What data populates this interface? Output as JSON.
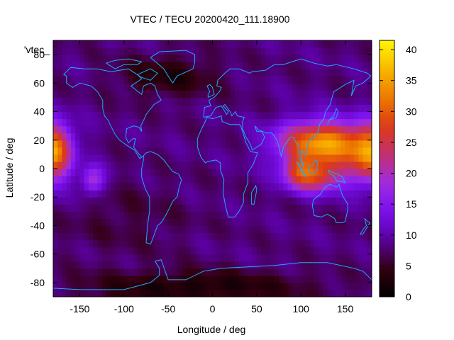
{
  "chart_data": {
    "type": "heatmap",
    "title": "VTEC / TECU 20200420_111.18900",
    "xlabel": "Longitude / deg",
    "ylabel": "Latitude / deg",
    "key_label": "'vtec_",
    "xlim": [
      -180,
      180
    ],
    "ylim": [
      -90,
      90
    ],
    "zlim": [
      0,
      41.5
    ],
    "x_ticks": [
      -150,
      -100,
      -50,
      0,
      50,
      100,
      150
    ],
    "y_ticks": [
      -80,
      -60,
      -40,
      -20,
      0,
      20,
      40,
      60,
      80
    ],
    "colorbar_ticks": [
      0,
      5,
      10,
      15,
      20,
      25,
      30,
      35,
      40
    ],
    "palette": [
      "#000000",
      "#33000f",
      "#5a00a0",
      "#7a10ee",
      "#a02ce0",
      "#c23070",
      "#dd3a14",
      "#ee7a00",
      "#f9b800",
      "#fff700"
    ],
    "coastline_color": "#1ea8ff",
    "background_vtec": 8,
    "features": [
      {
        "lon": -178,
        "lat": 12,
        "sx": 14,
        "sy": 14,
        "amp": 15
      },
      {
        "lon": -135,
        "lat": -8,
        "sx": 9,
        "sy": 7,
        "amp": 12
      },
      {
        "lon": 125,
        "lat": 18,
        "sx": 35,
        "sy": 11,
        "amp": 27
      },
      {
        "lon": 115,
        "lat": -5,
        "sx": 22,
        "sy": 8,
        "amp": 19
      },
      {
        "lon": 170,
        "lat": 5,
        "sx": 18,
        "sy": 14,
        "amp": 8
      },
      {
        "lon": 95,
        "lat": 0,
        "sx": 10,
        "sy": 8,
        "amp": 6
      },
      {
        "lon": -50,
        "lat": 65,
        "sx": 40,
        "sy": 10,
        "amp": -5
      },
      {
        "lon": -20,
        "lat": -83,
        "sx": 90,
        "sy": 8,
        "amp": -6
      },
      {
        "lon": -100,
        "lat": -35,
        "sx": 50,
        "sy": 18,
        "amp": -2
      }
    ],
    "coastlines": [
      [
        [
          -165,
          68
        ],
        [
          -160,
          71
        ],
        [
          -145,
          70
        ],
        [
          -130,
          70
        ],
        [
          -115,
          68
        ],
        [
          -95,
          70
        ],
        [
          -85,
          66
        ],
        [
          -80,
          63
        ],
        [
          -92,
          58
        ],
        [
          -88,
          56
        ],
        [
          -80,
          52
        ],
        [
          -78,
          58
        ],
        [
          -70,
          60
        ],
        [
          -65,
          58
        ],
        [
          -62,
          52
        ],
        [
          -58,
          48
        ],
        [
          -66,
          45
        ],
        [
          -70,
          42
        ],
        [
          -75,
          38
        ],
        [
          -77,
          35
        ],
        [
          -81,
          30
        ],
        [
          -80,
          26
        ],
        [
          -83,
          29
        ],
        [
          -89,
          30
        ],
        [
          -97,
          28
        ],
        [
          -98,
          22
        ],
        [
          -95,
          18
        ],
        [
          -90,
          21
        ],
        [
          -87,
          21
        ],
        [
          -89,
          15
        ],
        [
          -84,
          11
        ],
        [
          -80,
          8
        ],
        [
          -78,
          9
        ],
        [
          -82,
          7
        ],
        [
          -88,
          13
        ],
        [
          -96,
          16
        ],
        [
          -105,
          20
        ],
        [
          -110,
          24
        ],
        [
          -115,
          30
        ],
        [
          -118,
          34
        ],
        [
          -122,
          37
        ],
        [
          -124,
          42
        ],
        [
          -124,
          48
        ],
        [
          -130,
          54
        ],
        [
          -137,
          58
        ],
        [
          -150,
          60
        ],
        [
          -158,
          57
        ],
        [
          -165,
          60
        ],
        [
          -165,
          65
        ],
        [
          -168,
          66
        ],
        [
          -165,
          68
        ]
      ],
      [
        [
          -78,
          9
        ],
        [
          -75,
          11
        ],
        [
          -70,
          12
        ],
        [
          -62,
          10
        ],
        [
          -55,
          6
        ],
        [
          -50,
          2
        ],
        [
          -45,
          -2
        ],
        [
          -38,
          -4
        ],
        [
          -35,
          -8
        ],
        [
          -38,
          -14
        ],
        [
          -40,
          -20
        ],
        [
          -45,
          -23
        ],
        [
          -48,
          -27
        ],
        [
          -53,
          -33
        ],
        [
          -58,
          -38
        ],
        [
          -62,
          -40
        ],
        [
          -65,
          -45
        ],
        [
          -68,
          -50
        ],
        [
          -70,
          -53
        ],
        [
          -75,
          -52
        ],
        [
          -74,
          -45
        ],
        [
          -73,
          -38
        ],
        [
          -71,
          -30
        ],
        [
          -71,
          -20
        ],
        [
          -76,
          -14
        ],
        [
          -80,
          -6
        ],
        [
          -80,
          0
        ],
        [
          -78,
          6
        ],
        [
          -78,
          9
        ]
      ],
      [
        [
          -17,
          15
        ],
        [
          -17,
          21
        ],
        [
          -13,
          27
        ],
        [
          -9,
          32
        ],
        [
          -6,
          36
        ],
        [
          0,
          35
        ],
        [
          10,
          37
        ],
        [
          11,
          33
        ],
        [
          20,
          31
        ],
        [
          30,
          31
        ],
        [
          32,
          30
        ],
        [
          35,
          24
        ],
        [
          38,
          18
        ],
        [
          43,
          12
        ],
        [
          51,
          11
        ],
        [
          46,
          3
        ],
        [
          40,
          -3
        ],
        [
          40,
          -10
        ],
        [
          35,
          -18
        ],
        [
          35,
          -24
        ],
        [
          30,
          -30
        ],
        [
          25,
          -34
        ],
        [
          18,
          -34
        ],
        [
          15,
          -27
        ],
        [
          12,
          -17
        ],
        [
          13,
          -8
        ],
        [
          9,
          -1
        ],
        [
          9,
          4
        ],
        [
          4,
          6
        ],
        [
          -5,
          5
        ],
        [
          -8,
          4
        ],
        [
          -13,
          8
        ],
        [
          -17,
          15
        ]
      ],
      [
        [
          -10,
          36
        ],
        [
          -9,
          43
        ],
        [
          -2,
          44
        ],
        [
          -4,
          48
        ],
        [
          2,
          50
        ],
        [
          8,
          54
        ],
        [
          10,
          57
        ],
        [
          5,
          58
        ],
        [
          6,
          62
        ],
        [
          14,
          67
        ],
        [
          20,
          70
        ],
        [
          30,
          70
        ],
        [
          42,
          67
        ],
        [
          45,
          68
        ],
        [
          60,
          69
        ],
        [
          70,
          73
        ],
        [
          80,
          73
        ],
        [
          100,
          77
        ],
        [
          115,
          74
        ],
        [
          130,
          72
        ],
        [
          140,
          73
        ],
        [
          160,
          70
        ],
        [
          175,
          67
        ],
        [
          179,
          65
        ],
        [
          170,
          60
        ],
        [
          162,
          58
        ],
        [
          157,
          51
        ],
        [
          160,
          62
        ],
        [
          150,
          59
        ],
        [
          140,
          55
        ],
        [
          137,
          54
        ],
        [
          133,
          45
        ],
        [
          128,
          40
        ],
        [
          126,
          35
        ],
        [
          121,
          31
        ],
        [
          120,
          27
        ],
        [
          117,
          23
        ],
        [
          110,
          21
        ],
        [
          108,
          18
        ],
        [
          106,
          12
        ],
        [
          105,
          9
        ],
        [
          100,
          13
        ],
        [
          100,
          8
        ],
        [
          103,
          1
        ],
        [
          98,
          8
        ],
        [
          98,
          16
        ],
        [
          95,
          17
        ],
        [
          92,
          22
        ],
        [
          88,
          22
        ],
        [
          80,
          15
        ],
        [
          78,
          8
        ],
        [
          73,
          20
        ],
        [
          67,
          25
        ],
        [
          60,
          25
        ],
        [
          57,
          26
        ],
        [
          52,
          27
        ],
        [
          48,
          30
        ],
        [
          50,
          26
        ],
        [
          56,
          26
        ],
        [
          59,
          22
        ],
        [
          55,
          17
        ],
        [
          45,
          13
        ],
        [
          43,
          17
        ],
        [
          38,
          22
        ],
        [
          34,
          28
        ],
        [
          34,
          33
        ],
        [
          36,
          36
        ],
        [
          28,
          37
        ],
        [
          26,
          40
        ],
        [
          22,
          37
        ],
        [
          20,
          40
        ],
        [
          14,
          45
        ],
        [
          12,
          44
        ],
        [
          18,
          40
        ],
        [
          16,
          38
        ],
        [
          10,
          44
        ],
        [
          4,
          43
        ],
        [
          -2,
          37
        ],
        [
          -10,
          36
        ]
      ],
      [
        [
          114,
          -22
        ],
        [
          113,
          -26
        ],
        [
          115,
          -33
        ],
        [
          123,
          -34
        ],
        [
          130,
          -32
        ],
        [
          138,
          -35
        ],
        [
          140,
          -38
        ],
        [
          147,
          -38
        ],
        [
          150,
          -37
        ],
        [
          153,
          -29
        ],
        [
          153,
          -25
        ],
        [
          147,
          -19
        ],
        [
          145,
          -15
        ],
        [
          143,
          -11
        ],
        [
          141,
          -13
        ],
        [
          136,
          -12
        ],
        [
          133,
          -11
        ],
        [
          130,
          -12
        ],
        [
          126,
          -14
        ],
        [
          122,
          -18
        ],
        [
          114,
          -22
        ]
      ],
      [
        [
          -180,
          -84
        ],
        [
          -150,
          -85
        ],
        [
          -100,
          -85
        ],
        [
          -70,
          -80
        ],
        [
          -60,
          -75
        ],
        [
          -60,
          -70
        ],
        [
          -65,
          -65
        ],
        [
          -58,
          -64
        ],
        [
          -50,
          -78
        ],
        [
          -30,
          -78
        ],
        [
          -10,
          -72
        ],
        [
          10,
          -70
        ],
        [
          40,
          -69
        ],
        [
          70,
          -68
        ],
        [
          100,
          -66
        ],
        [
          130,
          -66
        ],
        [
          160,
          -70
        ],
        [
          170,
          -72
        ],
        [
          180,
          -78
        ],
        [
          180,
          -84
        ]
      ],
      [
        [
          -45,
          60
        ],
        [
          -50,
          65
        ],
        [
          -55,
          70
        ],
        [
          -70,
          78
        ],
        [
          -60,
          82
        ],
        [
          -30,
          83
        ],
        [
          -20,
          80
        ],
        [
          -20,
          75
        ],
        [
          -22,
          70
        ],
        [
          -40,
          65
        ],
        [
          -45,
          60
        ]
      ],
      [
        [
          -5,
          50
        ],
        [
          -5,
          52
        ],
        [
          -3,
          54
        ],
        [
          -6,
          58
        ],
        [
          -3,
          59
        ],
        [
          0,
          57
        ],
        [
          2,
          52
        ],
        [
          -5,
          50
        ]
      ],
      [
        [
          130,
          31
        ],
        [
          132,
          34
        ],
        [
          136,
          35
        ],
        [
          140,
          36
        ],
        [
          142,
          40
        ],
        [
          140,
          42
        ],
        [
          137,
          37
        ],
        [
          132,
          34
        ],
        [
          130,
          31
        ]
      ],
      [
        [
          95,
          5
        ],
        [
          98,
          3
        ],
        [
          103,
          -3
        ],
        [
          106,
          -6
        ],
        [
          104,
          -5
        ],
        [
          100,
          -1
        ],
        [
          97,
          3
        ],
        [
          95,
          5
        ]
      ],
      [
        [
          109,
          1
        ],
        [
          112,
          2
        ],
        [
          117,
          6
        ],
        [
          119,
          5
        ],
        [
          118,
          0
        ],
        [
          116,
          -4
        ],
        [
          110,
          -3
        ],
        [
          109,
          1
        ]
      ],
      [
        [
          131,
          -1
        ],
        [
          137,
          -3
        ],
        [
          142,
          -4
        ],
        [
          147,
          -6
        ],
        [
          150,
          -10
        ],
        [
          146,
          -9
        ],
        [
          141,
          -9
        ],
        [
          137,
          -5
        ],
        [
          132,
          -3
        ],
        [
          131,
          -1
        ]
      ],
      [
        [
          172,
          -35
        ],
        [
          175,
          -37
        ],
        [
          178,
          -38
        ],
        [
          175,
          -41
        ],
        [
          170,
          -46
        ],
        [
          167,
          -46
        ],
        [
          171,
          -42
        ],
        [
          174,
          -40
        ],
        [
          172,
          -35
        ]
      ],
      [
        [
          44,
          -25
        ],
        [
          47,
          -25
        ],
        [
          50,
          -15
        ],
        [
          49,
          -12
        ],
        [
          44,
          -17
        ],
        [
          44,
          -25
        ]
      ],
      [
        [
          -85,
          66
        ],
        [
          -70,
          70
        ],
        [
          -62,
          67
        ],
        [
          -70,
          62
        ],
        [
          -80,
          64
        ],
        [
          -85,
          66
        ]
      ],
      [
        [
          -110,
          70
        ],
        [
          -100,
          73
        ],
        [
          -85,
          73
        ],
        [
          -80,
          75
        ],
        [
          -95,
          77
        ],
        [
          -110,
          76
        ],
        [
          -120,
          74
        ],
        [
          -110,
          70
        ]
      ]
    ]
  }
}
